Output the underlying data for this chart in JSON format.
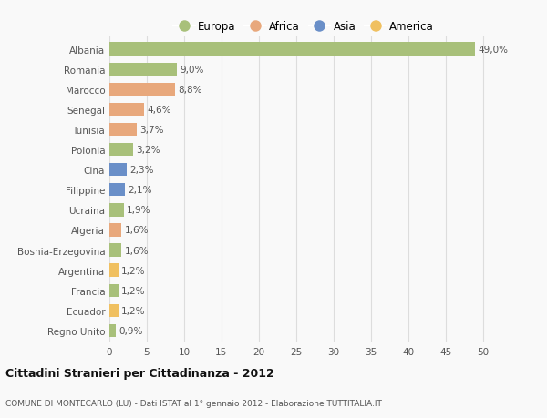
{
  "categories": [
    "Albania",
    "Romania",
    "Marocco",
    "Senegal",
    "Tunisia",
    "Polonia",
    "Cina",
    "Filippine",
    "Ucraina",
    "Algeria",
    "Bosnia-Erzegovina",
    "Argentina",
    "Francia",
    "Ecuador",
    "Regno Unito"
  ],
  "values": [
    49.0,
    9.0,
    8.8,
    4.6,
    3.7,
    3.2,
    2.3,
    2.1,
    1.9,
    1.6,
    1.6,
    1.2,
    1.2,
    1.2,
    0.9
  ],
  "labels": [
    "49,0%",
    "9,0%",
    "8,8%",
    "4,6%",
    "3,7%",
    "3,2%",
    "2,3%",
    "2,1%",
    "1,9%",
    "1,6%",
    "1,6%",
    "1,2%",
    "1,2%",
    "1,2%",
    "0,9%"
  ],
  "colors": [
    "#a8c07a",
    "#a8c07a",
    "#e8a87c",
    "#e8a87c",
    "#e8a87c",
    "#a8c07a",
    "#6a8fc8",
    "#6a8fc8",
    "#a8c07a",
    "#e8a87c",
    "#a8c07a",
    "#f0c060",
    "#a8c07a",
    "#f0c060",
    "#a8c07a"
  ],
  "legend": [
    {
      "label": "Europa",
      "color": "#a8c07a"
    },
    {
      "label": "Africa",
      "color": "#e8a87c"
    },
    {
      "label": "Asia",
      "color": "#6a8fc8"
    },
    {
      "label": "America",
      "color": "#f0c060"
    }
  ],
  "xlim": [
    0,
    52
  ],
  "xticks": [
    0,
    5,
    10,
    15,
    20,
    25,
    30,
    35,
    40,
    45,
    50
  ],
  "title": "Cittadini Stranieri per Cittadinanza - 2012",
  "subtitle": "COMUNE DI MONTECARLO (LU) - Dati ISTAT al 1° gennaio 2012 - Elaborazione TUTTITALIA.IT",
  "background_color": "#f9f9f9",
  "grid_color": "#dddddd",
  "bar_height": 0.65,
  "label_fontsize": 7.5,
  "tick_fontsize": 7.5,
  "legend_fontsize": 8.5
}
